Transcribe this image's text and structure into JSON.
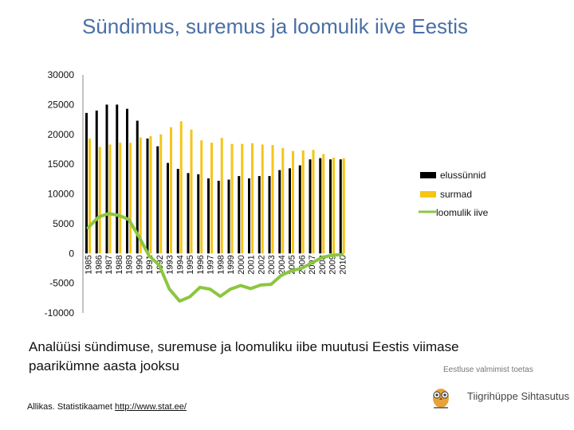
{
  "page": {
    "title": "Sündimus, suremus ja loomulik iive Eestis",
    "caption": "Analüüsi sündimuse, suremuse ja loomuliku iibe muutusi Eestis viimase paarikümne aasta jooksu",
    "source_label": "Allikas. Statistikaamet ",
    "source_link": "http://www.stat.ee/",
    "support_text": "Eestluse valmimist toetas",
    "logo_text": "Tiigrihüppe Sihtasutus"
  },
  "chart_data": {
    "type": "bar",
    "categories": [
      "1985",
      "1986",
      "1987",
      "1988",
      "1989",
      "1990",
      "1991",
      "1992",
      "1993",
      "1994",
      "1995",
      "1996",
      "1997",
      "1998",
      "1999",
      "2000",
      "2001",
      "2002",
      "2003",
      "2004",
      "2005",
      "2006",
      "2007",
      "2008",
      "2009",
      "2010"
    ],
    "series": [
      {
        "name": "elussünnid",
        "type": "bar",
        "color": "#000000",
        "values": [
          23600,
          24000,
          25000,
          25000,
          24300,
          22300,
          19300,
          18000,
          15200,
          14200,
          13500,
          13300,
          12600,
          12200,
          12400,
          13000,
          12600,
          13000,
          13000,
          14000,
          14300,
          14800,
          15800,
          16000,
          15800,
          15800
        ]
      },
      {
        "name": "surmad",
        "type": "bar",
        "color": "#f5c518",
        "values": [
          19300,
          17900,
          18300,
          18600,
          18600,
          19500,
          19700,
          20000,
          21200,
          22200,
          20800,
          19000,
          18600,
          19400,
          18400,
          18400,
          18500,
          18300,
          18200,
          17700,
          17200,
          17300,
          17400,
          16700,
          16100,
          16000
        ]
      },
      {
        "name": "loomulik iive",
        "type": "line",
        "color": "#8cc63f",
        "values": [
          4300,
          6100,
          6700,
          6400,
          5700,
          2800,
          -400,
          -2000,
          -6000,
          -8000,
          -7300,
          -5700,
          -6000,
          -7200,
          -6000,
          -5400,
          -5900,
          -5300,
          -5200,
          -3700,
          -2900,
          -2500,
          -1600,
          -700,
          -300,
          -200
        ]
      }
    ],
    "ylim": [
      -10000,
      30000
    ],
    "yticks": [
      "30000",
      "25000",
      "20000",
      "15000",
      "10000",
      "5000",
      "0",
      "-5000",
      "-10000"
    ],
    "ytick_values": [
      30000,
      25000,
      20000,
      15000,
      10000,
      5000,
      0,
      -5000,
      -10000
    ],
    "legend": [
      "elussünnid",
      "surmad",
      "loomulik iive"
    ],
    "legend_position": "right",
    "grid": false
  }
}
